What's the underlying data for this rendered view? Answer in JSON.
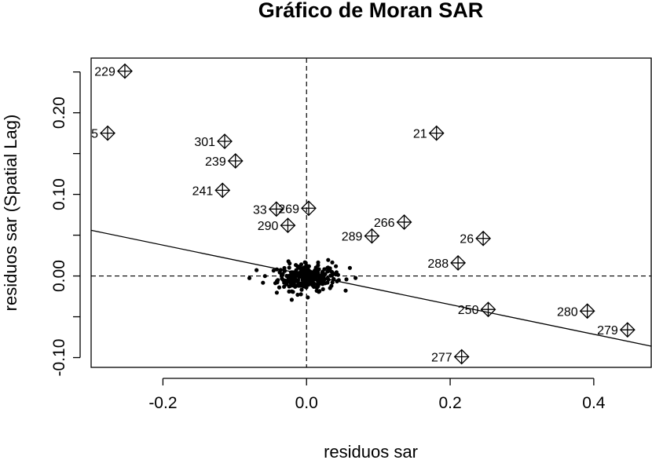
{
  "chart_data": {
    "type": "scatter",
    "title": "Gráfico de Moran SAR",
    "xlabel": "residuos sar",
    "ylabel": "residuos sar (Spatial Lag)",
    "xlim": [
      -0.3,
      0.48
    ],
    "ylim": [
      -0.112,
      0.267
    ],
    "x_ticks": [
      -0.2,
      0.0,
      0.2,
      0.4
    ],
    "x_tick_labels": [
      "-0.2",
      "0.0",
      "0.2",
      "0.4"
    ],
    "y_ticks": [
      -0.1,
      -0.05,
      0.0,
      0.05,
      0.1,
      0.15,
      0.2,
      0.25
    ],
    "y_tick_labels": [
      "-0.10",
      "",
      "0.00",
      "",
      "0.10",
      "",
      "0.20",
      ""
    ],
    "grid": false,
    "reference_lines": {
      "vertical_x": 0.0,
      "horizontal_y": 0.0,
      "style": "dashed"
    },
    "regression_line": {
      "x": [
        -0.3,
        0.48
      ],
      "y": [
        0.056,
        -0.086
      ]
    },
    "influential_points": [
      {
        "label": "229",
        "x": -0.253,
        "y": 0.251
      },
      {
        "label": "5",
        "x": -0.277,
        "y": 0.175
      },
      {
        "label": "301",
        "x": -0.114,
        "y": 0.165
      },
      {
        "label": "239",
        "x": -0.099,
        "y": 0.141
      },
      {
        "label": "241",
        "x": -0.117,
        "y": 0.105
      },
      {
        "label": "33",
        "x": -0.042,
        "y": 0.082
      },
      {
        "label": "269",
        "x": 0.003,
        "y": 0.083
      },
      {
        "label": "290",
        "x": -0.026,
        "y": 0.062
      },
      {
        "label": "21",
        "x": 0.181,
        "y": 0.175
      },
      {
        "label": "266",
        "x": 0.136,
        "y": 0.066
      },
      {
        "label": "289",
        "x": 0.091,
        "y": 0.049
      },
      {
        "label": "26",
        "x": 0.246,
        "y": 0.046
      },
      {
        "label": "288",
        "x": 0.211,
        "y": 0.016
      },
      {
        "label": "250",
        "x": 0.253,
        "y": -0.041
      },
      {
        "label": "280",
        "x": 0.391,
        "y": -0.043
      },
      {
        "label": "279",
        "x": 0.447,
        "y": -0.066
      },
      {
        "label": "277",
        "x": 0.216,
        "y": -0.099
      }
    ],
    "cluster": {
      "center_x": 0.0,
      "center_y": -0.002,
      "spread_x": 0.02,
      "spread_y": 0.008,
      "count": 270
    }
  }
}
